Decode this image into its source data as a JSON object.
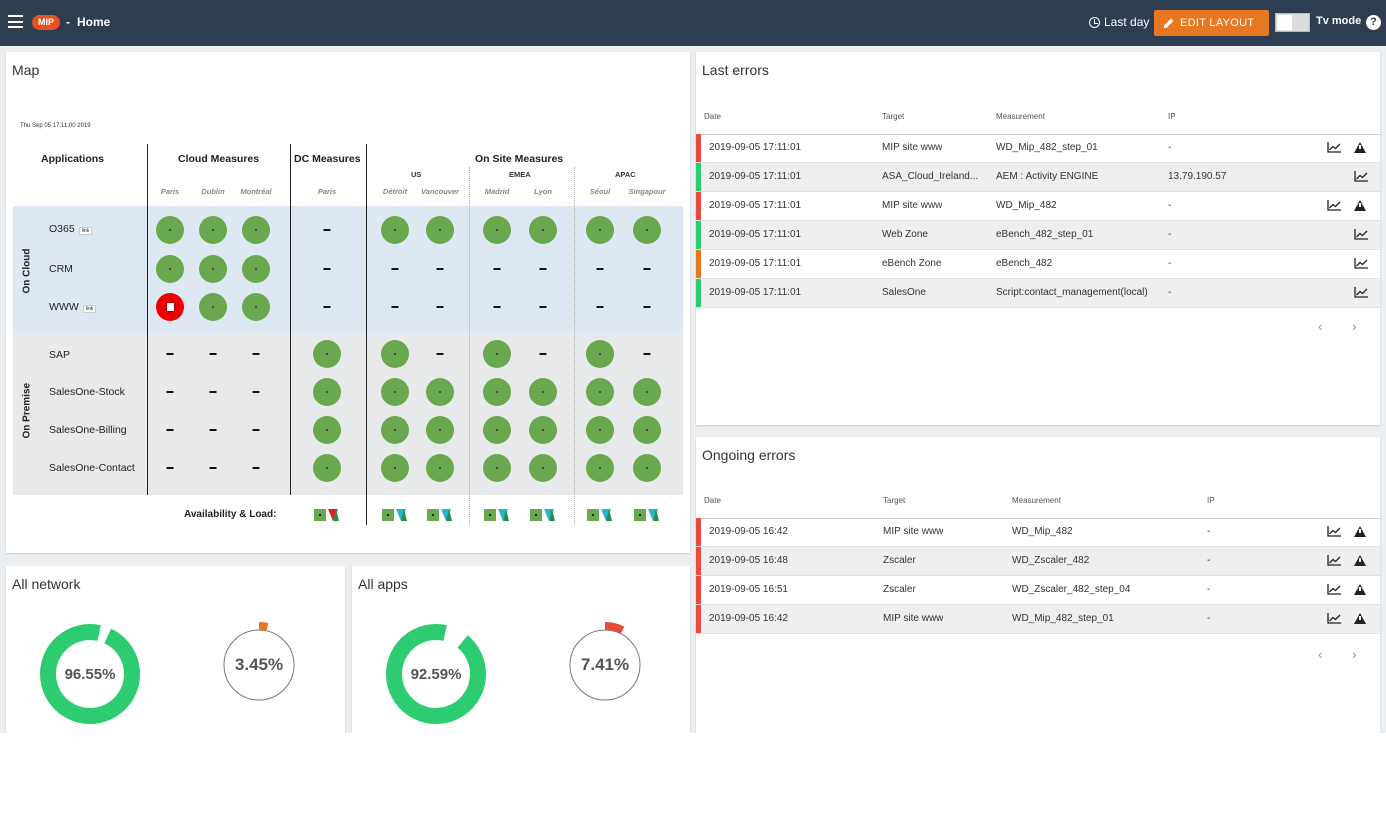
{
  "topbar": {
    "logo": "MIP",
    "separator": "-",
    "page": "Home",
    "time_range": "Last day",
    "edit_layout": "EDIT LAYOUT",
    "tv_mode": "Tv mode",
    "help": "?"
  },
  "map": {
    "title": "Map",
    "timestamp": "Thu Sep 05 17:11:00 2019",
    "headers": {
      "applications": "Applications",
      "cloud": "Cloud Measures",
      "dc": "DC Measures",
      "onsite": "On Site Measures",
      "us": "US",
      "emea": "EMEA",
      "apac": "APAC"
    },
    "cities": [
      "Paris",
      "Dublin",
      "Montréal",
      "Paris",
      "Détroit",
      "Vancouver",
      "Madrid",
      "Lyon",
      "Séoul",
      "Singapour"
    ],
    "groups": {
      "cloud": "On Cloud",
      "premise": "On Premise"
    },
    "link_label": "link",
    "availability_label": "Availability & Load:",
    "rows": [
      {
        "name": "O365",
        "status": [
          "ok",
          "ok",
          "ok",
          "na",
          "ok",
          "ok",
          "ok",
          "ok",
          "ok",
          "ok"
        ]
      },
      {
        "name": "CRM",
        "status": [
          "ok",
          "ok",
          "ok",
          "na",
          "na",
          "na",
          "na",
          "na",
          "na",
          "na"
        ]
      },
      {
        "name": "WWW",
        "status": [
          "err",
          "ok",
          "ok",
          "na",
          "na",
          "na",
          "na",
          "na",
          "na",
          "na"
        ]
      },
      {
        "name": "SAP",
        "status": [
          "na",
          "na",
          "na",
          "ok",
          "ok",
          "na",
          "ok",
          "na",
          "ok",
          "na"
        ]
      },
      {
        "name": "SalesOne-Stock",
        "status": [
          "na",
          "na",
          "na",
          "ok",
          "ok",
          "ok",
          "ok",
          "ok",
          "ok",
          "ok"
        ]
      },
      {
        "name": "SalesOne-Billing",
        "status": [
          "na",
          "na",
          "na",
          "ok",
          "ok",
          "ok",
          "ok",
          "ok",
          "ok",
          "ok"
        ]
      },
      {
        "name": "SalesOne-Contact",
        "status": [
          "na",
          "na",
          "na",
          "ok",
          "ok",
          "ok",
          "ok",
          "ok",
          "ok",
          "ok"
        ]
      }
    ]
  },
  "network": {
    "title": "All network",
    "ok_value": 96.55,
    "ok_label": "96.55%",
    "warn_value": 3.45,
    "warn_label": "3.45%",
    "ok_color": "#2ecc71",
    "warn_color": "#e87722"
  },
  "apps": {
    "title": "All apps",
    "ok_value": 92.59,
    "ok_label": "92.59%",
    "fail_value": 7.41,
    "fail_label": "7.41%",
    "ok_color": "#2ecc71",
    "fail_color": "#e74c3c"
  },
  "last_errors": {
    "title": "Last errors",
    "columns": [
      "Date",
      "Target",
      "Measurement",
      "IP"
    ],
    "rows": [
      {
        "date": "2019-09-05 17:11:01",
        "target": "MIP site www",
        "measurement": "WD_Mip_482_step_01",
        "ip": "-",
        "color": "#e74c3c",
        "warn": true
      },
      {
        "date": "2019-09-05 17:11:01",
        "target": "ASA_Cloud_Ireland...",
        "measurement": "AEM : Activity ENGINE",
        "ip": "13.79.190.57",
        "color": "#2ecc71",
        "warn": false
      },
      {
        "date": "2019-09-05 17:11:01",
        "target": "MIP site www",
        "measurement": "WD_Mip_482",
        "ip": "-",
        "color": "#e74c3c",
        "warn": true
      },
      {
        "date": "2019-09-05 17:11:01",
        "target": "Web Zone",
        "measurement": "eBench_482_step_01",
        "ip": "-",
        "color": "#2ecc71",
        "warn": false
      },
      {
        "date": "2019-09-05 17:11:01",
        "target": "eBench Zone",
        "measurement": "eBench_482",
        "ip": "-",
        "color": "#e87722",
        "warn": false
      },
      {
        "date": "2019-09-05 17:11:01",
        "target": "SalesOne",
        "measurement": "Script:contact_management(local)",
        "ip": "-",
        "color": "#2ecc71",
        "warn": false
      }
    ],
    "prev": "‹",
    "next": "›"
  },
  "ongoing_errors": {
    "title": "Ongoing errors",
    "columns": [
      "Date",
      "Target",
      "Measurement",
      "IP"
    ],
    "rows": [
      {
        "date": "2019-09-05 16:42",
        "target": "MIP site www",
        "measurement": "WD_Mip_482",
        "ip": "-",
        "color": "#e74c3c",
        "warn": true
      },
      {
        "date": "2019-09-05 16:48",
        "target": "Zscaler",
        "measurement": "WD_Zscaler_482",
        "ip": "-",
        "color": "#e74c3c",
        "warn": true
      },
      {
        "date": "2019-09-05 16:51",
        "target": "Zscaler",
        "measurement": "WD_Zscaler_482_step_04",
        "ip": "-",
        "color": "#e74c3c",
        "warn": true
      },
      {
        "date": "2019-09-05 16:42",
        "target": "MIP site www",
        "measurement": "WD_Mip_482_step_01",
        "ip": "-",
        "color": "#e74c3c",
        "warn": true
      }
    ],
    "prev": "‹",
    "next": "›"
  }
}
